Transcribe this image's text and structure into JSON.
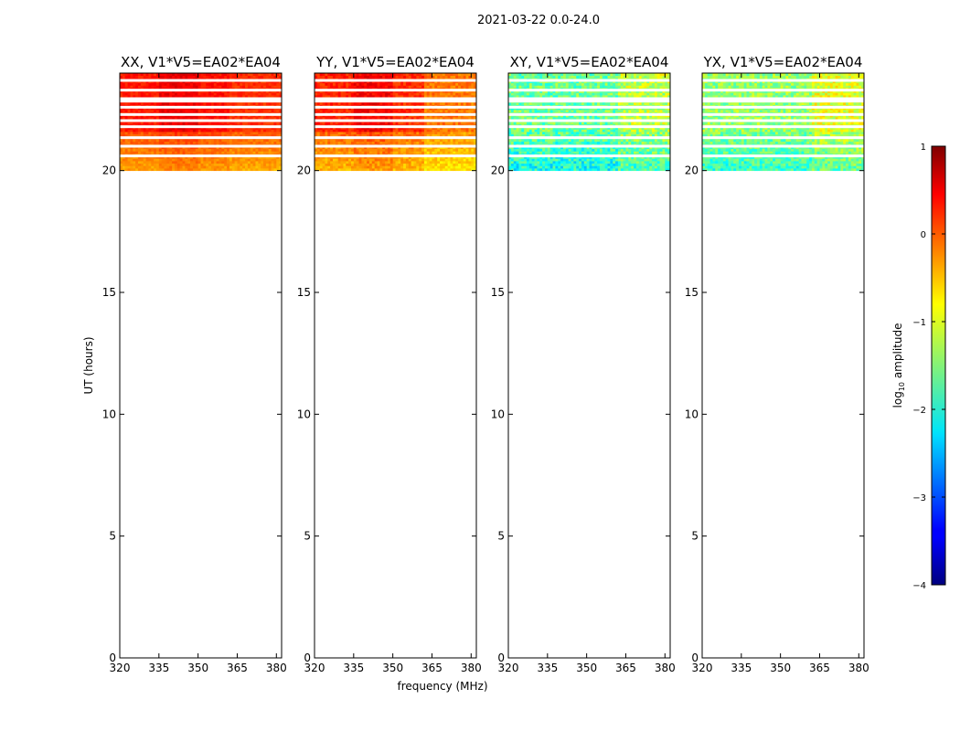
{
  "figure": {
    "suptitle": "2021-03-22 0.0-24.0",
    "xlabel": "frequency (MHz)",
    "ylabel": "UT (hours)"
  },
  "colorbar": {
    "label_prefix": "log",
    "label_sub": "10",
    "label_suffix": " amplitude",
    "range": [
      -4,
      1
    ],
    "ticks": [
      1,
      0,
      -1,
      -2,
      -3,
      -4
    ],
    "tick_labels": [
      "1",
      "0",
      "−1",
      "−2",
      "−3",
      "−4"
    ],
    "colormap": "jet"
  },
  "chart_data": {
    "type": "heatmap",
    "xlim": [
      320,
      382
    ],
    "ylim": [
      0,
      24
    ],
    "xticks": [
      320,
      335,
      350,
      365,
      380
    ],
    "yticks": [
      0,
      5,
      10,
      15,
      20
    ],
    "data_time_range": [
      20.0,
      24.0
    ],
    "gap_rows_hours": [
      20.6,
      21.0,
      21.35,
      21.8,
      22.05,
      22.3,
      22.6,
      22.85,
      22.95,
      23.3,
      23.7
    ],
    "panels": [
      {
        "title": "XX, V1*V5=EA02*EA04",
        "freq_bands": [
          {
            "range": [
              320,
              335
            ],
            "log_amp": 0.25
          },
          {
            "range": [
              335,
              350
            ],
            "log_amp": 0.45
          },
          {
            "range": [
              350,
              362
            ],
            "log_amp": 0.3
          },
          {
            "range": [
              362,
              382
            ],
            "log_amp": 0.15
          }
        ],
        "lower_region_log_amp": -0.4,
        "noise": 0.15
      },
      {
        "title": "YY, V1*V5=EA02*EA04",
        "freq_bands": [
          {
            "range": [
              320,
              335
            ],
            "log_amp": 0.2
          },
          {
            "range": [
              335,
              350
            ],
            "log_amp": 0.4
          },
          {
            "range": [
              350,
              362
            ],
            "log_amp": 0.15
          },
          {
            "range": [
              362,
              382
            ],
            "log_amp": -0.2
          }
        ],
        "lower_region_log_amp": -0.6,
        "noise": 0.2
      },
      {
        "title": "XY, V1*V5=EA02*EA04",
        "freq_bands": [
          {
            "range": [
              320,
              362
            ],
            "log_amp": -1.6
          },
          {
            "range": [
              362,
              382
            ],
            "log_amp": -1.2
          }
        ],
        "lower_region_log_amp": -1.7,
        "noise": 0.45
      },
      {
        "title": "YX, V1*V5=EA02*EA04",
        "freq_bands": [
          {
            "range": [
              320,
              362
            ],
            "log_amp": -1.4
          },
          {
            "range": [
              362,
              382
            ],
            "log_amp": -1.0
          }
        ],
        "lower_region_log_amp": -1.6,
        "noise": 0.4
      }
    ]
  }
}
